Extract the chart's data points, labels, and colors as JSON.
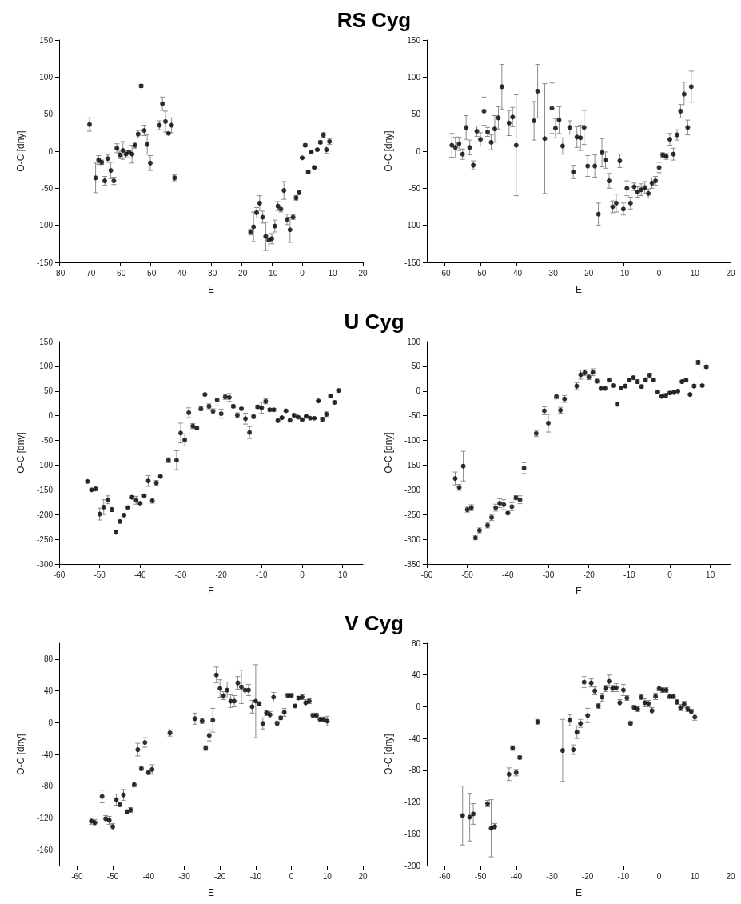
{
  "chart_data": [
    {
      "type": "scatter",
      "title": "RS Cyg",
      "xlabel": "E",
      "ylabel": "O-C [dny]",
      "xlim": [
        -80,
        20
      ],
      "xticks": [
        -80,
        -70,
        -60,
        -50,
        -40,
        -30,
        -20,
        -10,
        0,
        10,
        20
      ],
      "ylim": [
        -150,
        150
      ],
      "yticks": [
        -150,
        -100,
        -50,
        0,
        50,
        100,
        150
      ],
      "marker": "circle",
      "x": [
        -70,
        -68,
        -67,
        -66,
        -65,
        -64,
        -63,
        -62,
        -61,
        -60,
        -59,
        -58,
        -57,
        -56,
        -55,
        -54,
        -53,
        -52,
        -51,
        -50,
        -47,
        -46,
        -45,
        -44,
        -43,
        -42,
        -17,
        -16,
        -15,
        -14,
        -13,
        -12,
        -11,
        -10,
        -9,
        -8,
        -7,
        -6,
        -5,
        -4,
        -3,
        -2,
        -1,
        0,
        1,
        2,
        3,
        4,
        5,
        6,
        7,
        8,
        9
      ],
      "series": [
        {
          "color": "#000000",
          "values": [
            36,
            -36,
            -12,
            -15,
            -40,
            -10,
            -26,
            -40,
            4,
            -5,
            1,
            -4,
            -1,
            -4,
            8,
            23,
            88,
            28,
            9,
            -16,
            35,
            64,
            40,
            24,
            35,
            -36,
            -109,
            -102,
            -83,
            -70,
            -89,
            -115,
            -120,
            -118,
            -101,
            -74,
            -78,
            -53,
            -92,
            -106,
            -89,
            -63,
            -56,
            -9,
            8,
            -28,
            -1,
            -22,
            2,
            12,
            22,
            2,
            13
          ],
          "errors": [
            9,
            20,
            6,
            3,
            6,
            5,
            11,
            5,
            6,
            5,
            12,
            5,
            8,
            12,
            4,
            5,
            2,
            7,
            13,
            10,
            6,
            9,
            14,
            1,
            10,
            4,
            4,
            20,
            7,
            10,
            8,
            19,
            8,
            7,
            8,
            6,
            4,
            12,
            7,
            17,
            3,
            3,
            2,
            1,
            2,
            2,
            1,
            1,
            1,
            2,
            3,
            5,
            4
          ]
        }
      ]
    },
    {
      "type": "scatter",
      "xlabel": "E",
      "ylabel": "O-C [dny]",
      "xlim": [
        -65,
        20
      ],
      "xticks": [
        -60,
        -50,
        -40,
        -30,
        -20,
        -10,
        0,
        10,
        20
      ],
      "ylim": [
        -150,
        150
      ],
      "yticks": [
        -150,
        -100,
        -50,
        0,
        50,
        100,
        150
      ],
      "marker": "circle",
      "x": [
        -58,
        -57,
        -56,
        -55,
        -54,
        -53,
        -52,
        -51,
        -50,
        -49,
        -48,
        -47,
        -46,
        -45,
        -44,
        -42,
        -41,
        -40,
        -35,
        -34,
        -32,
        -30,
        -29,
        -28,
        -27,
        -25,
        -24,
        -23,
        -22,
        -21,
        -20,
        -18,
        -17,
        -16,
        -15,
        -14,
        -13,
        -12,
        -11,
        -10,
        -9,
        -8,
        -7,
        -6,
        -5,
        -4,
        -3,
        -2,
        -1,
        0,
        1,
        2,
        3,
        4,
        5,
        6,
        7,
        8,
        9
      ],
      "series": [
        {
          "color": "#000000",
          "values": [
            8,
            5,
            10,
            -4,
            32,
            5,
            -19,
            27,
            16,
            54,
            26,
            12,
            30,
            45,
            87,
            38,
            46,
            8,
            41,
            81,
            17,
            58,
            31,
            42,
            7,
            32,
            -28,
            19,
            18,
            32,
            -20,
            -20,
            -85,
            -2,
            -12,
            -40,
            -75,
            -70,
            -13,
            -78,
            -50,
            -70,
            -48,
            -55,
            -52,
            -49,
            -57,
            -43,
            -40,
            -22,
            -5,
            -7,
            16,
            -4,
            22,
            54,
            77,
            32,
            87
          ],
          "errors": [
            16,
            14,
            9,
            7,
            16,
            10,
            6,
            7,
            9,
            19,
            6,
            10,
            18,
            15,
            30,
            17,
            13,
            68,
            26,
            36,
            74,
            34,
            13,
            18,
            11,
            9,
            9,
            14,
            17,
            23,
            14,
            15,
            15,
            19,
            11,
            10,
            8,
            12,
            9,
            8,
            10,
            8,
            5,
            7,
            8,
            8,
            6,
            7,
            6,
            7,
            3,
            4,
            8,
            8,
            7,
            9,
            16,
            10,
            21
          ]
        }
      ]
    },
    {
      "type": "scatter",
      "title": "U Cyg",
      "xlabel": "E",
      "ylabel": "O-C [dny]",
      "xlim": [
        -60,
        15
      ],
      "xticks": [
        -60,
        -50,
        -40,
        -30,
        -20,
        -10,
        0,
        10
      ],
      "ylim": [
        -300,
        150
      ],
      "yticks": [
        -300,
        -250,
        -200,
        -150,
        -100,
        -50,
        0,
        50,
        100,
        150
      ],
      "marker": "circle",
      "x": [
        -53,
        -52,
        -51,
        -50,
        -49,
        -48,
        -47,
        -46,
        -45,
        -44,
        -43,
        -42,
        -41,
        -40,
        -39,
        -38,
        -37,
        -36,
        -35,
        -33,
        -31,
        -30,
        -29,
        -28,
        -27,
        -26,
        -25,
        -24,
        -23,
        -22,
        -21,
        -20,
        -19,
        -18,
        -17,
        -16,
        -15,
        -14,
        -13,
        -12,
        -11,
        -10,
        -9,
        -8,
        -7,
        -6,
        -5,
        -4,
        -3,
        -2,
        -1,
        0,
        1,
        2,
        3,
        4,
        5,
        6,
        7,
        8,
        9
      ],
      "series": [
        {
          "color": "#000000",
          "values": [
            -133,
            -150,
            -148,
            -199,
            -185,
            -170,
            -190,
            -236,
            -214,
            -201,
            -186,
            -165,
            -171,
            -177,
            -162,
            -132,
            -172,
            -136,
            -123,
            -90,
            -90,
            -35,
            -49,
            6,
            -21,
            -25,
            14,
            43,
            19,
            9,
            32,
            4,
            38,
            37,
            19,
            1,
            14,
            -6,
            -34,
            -2,
            18,
            16,
            29,
            12,
            12,
            -10,
            -4,
            10,
            -9,
            1,
            -3,
            -8,
            -1,
            -5,
            -5,
            30,
            -7,
            3,
            40,
            27,
            51
          ],
          "errors": [
            2,
            2,
            3,
            12,
            15,
            8,
            4,
            3,
            2,
            2,
            2,
            3,
            8,
            2,
            2,
            11,
            5,
            5,
            2,
            5,
            19,
            20,
            12,
            10,
            5,
            2,
            4,
            2,
            5,
            5,
            12,
            9,
            5,
            8,
            3,
            5,
            2,
            11,
            12,
            3,
            3,
            11,
            5,
            3,
            3,
            3,
            2,
            2,
            4,
            3,
            2,
            2,
            1,
            1,
            1,
            1,
            4,
            5,
            3,
            3,
            3
          ]
        }
      ]
    },
    {
      "type": "scatter",
      "xlabel": "E",
      "ylabel": "O-C [dny]",
      "xlim": [
        -60,
        15
      ],
      "xticks": [
        -60,
        -50,
        -40,
        -30,
        -20,
        -10,
        0,
        10
      ],
      "ylim": [
        -350,
        100
      ],
      "yticks": [
        -350,
        -300,
        -250,
        -200,
        -150,
        -100,
        -50,
        0,
        50,
        100
      ],
      "marker": "circle",
      "x": [
        -53,
        -52,
        -51,
        -50,
        -49,
        -48,
        -47,
        -45,
        -44,
        -43,
        -42,
        -41,
        -40,
        -39,
        -38,
        -37,
        -36,
        -33,
        -31,
        -30,
        -28,
        -27,
        -26,
        -23,
        -22,
        -21,
        -20,
        -19,
        -18,
        -17,
        -16,
        -15,
        -14,
        -13,
        -12,
        -11,
        -10,
        -9,
        -8,
        -7,
        -6,
        -5,
        -4,
        -3,
        -2,
        -1,
        0,
        1,
        2,
        3,
        4,
        5,
        6,
        7,
        8,
        9
      ],
      "series": [
        {
          "color": "#000000",
          "values": [
            -177,
            -195,
            -152,
            -240,
            -236,
            -297,
            -282,
            -272,
            -256,
            -236,
            -227,
            -230,
            -247,
            -234,
            -216,
            -220,
            -156,
            -86,
            -40,
            -65,
            -11,
            -39,
            -16,
            10,
            33,
            37,
            28,
            38,
            20,
            5,
            5,
            22,
            11,
            -27,
            6,
            10,
            22,
            27,
            19,
            9,
            23,
            32,
            22,
            -2,
            -11,
            -9,
            -4,
            -3,
            0,
            19,
            22,
            -7,
            10,
            58,
            11,
            49
          ],
          "errors": [
            13,
            6,
            30,
            5,
            6,
            4,
            5,
            5,
            6,
            7,
            9,
            10,
            2,
            8,
            4,
            8,
            11,
            6,
            8,
            18,
            5,
            6,
            7,
            7,
            9,
            6,
            5,
            7,
            4,
            3,
            3,
            4,
            3,
            3,
            4,
            3,
            3,
            3,
            4,
            3,
            3,
            4,
            3,
            3,
            2,
            4,
            3,
            3,
            2,
            3,
            2,
            2,
            3,
            4,
            2,
            3
          ]
        }
      ]
    },
    {
      "type": "scatter",
      "title": "V Cyg",
      "xlabel": "E",
      "ylabel": "O-C [dny]",
      "xlim": [
        -65,
        20
      ],
      "xticks": [
        -60,
        -50,
        -40,
        -30,
        -20,
        -10,
        0,
        10,
        20
      ],
      "ylim": [
        -180,
        100
      ],
      "yticks": [
        -160,
        -120,
        -80,
        -40,
        0,
        40,
        80
      ],
      "marker": "circle",
      "x": [
        -56,
        -55,
        -53,
        -52,
        -51,
        -50,
        -49,
        -48,
        -47,
        -46,
        -45,
        -44,
        -43,
        -42,
        -41,
        -40,
        -39,
        -34,
        -27,
        -25,
        -24,
        -23,
        -22,
        -21,
        -20,
        -19,
        -18,
        -17,
        -16,
        -15,
        -14,
        -13,
        -12,
        -11,
        -10,
        -9,
        -8,
        -7,
        -6,
        -5,
        -4,
        -3,
        -2,
        -1,
        0,
        1,
        2,
        3,
        4,
        5,
        6,
        7,
        8,
        9,
        10
      ],
      "series": [
        {
          "color": "#000000",
          "values": [
            -124,
            -126,
            -93,
            -121,
            -123,
            -131,
            -97,
            -103,
            -91,
            -112,
            -110,
            -78,
            -34,
            -58,
            -25,
            -63,
            -59,
            -13,
            5,
            2,
            -32,
            -16,
            3,
            60,
            43,
            34,
            41,
            27,
            27,
            50,
            45,
            41,
            41,
            20,
            27,
            24,
            -1,
            12,
            10,
            32,
            -1,
            6,
            13,
            34,
            34,
            21,
            31,
            32,
            25,
            27,
            9,
            9,
            4,
            4,
            2
          ],
          "errors": [
            4,
            4,
            8,
            4,
            5,
            4,
            7,
            3,
            7,
            2,
            3,
            3,
            8,
            2,
            6,
            2,
            6,
            4,
            7,
            3,
            3,
            7,
            15,
            10,
            11,
            5,
            10,
            8,
            7,
            8,
            21,
            10,
            7,
            8,
            46,
            2,
            7,
            3,
            4,
            6,
            3,
            2,
            5,
            3,
            3,
            1,
            2,
            3,
            4,
            3,
            3,
            3,
            3,
            3,
            6
          ]
        }
      ]
    },
    {
      "type": "scatter",
      "xlabel": "E",
      "ylabel": "O-C [dny]",
      "xlim": [
        -65,
        20
      ],
      "xticks": [
        -60,
        -50,
        -40,
        -30,
        -20,
        -10,
        0,
        10,
        20
      ],
      "ylim": [
        -200,
        80
      ],
      "yticks": [
        -200,
        -160,
        -120,
        -80,
        -40,
        0,
        40,
        80
      ],
      "marker": "circle",
      "x": [
        -55,
        -53,
        -52,
        -48,
        -47,
        -46,
        -42,
        -41,
        -40,
        -39,
        -34,
        -27,
        -25,
        -24,
        -23,
        -22,
        -21,
        -20,
        -19,
        -18,
        -17,
        -16,
        -15,
        -14,
        -13,
        -12,
        -11,
        -10,
        -9,
        -8,
        -7,
        -6,
        -5,
        -4,
        -3,
        -2,
        -1,
        0,
        1,
        2,
        3,
        4,
        5,
        6,
        7,
        8,
        9,
        10
      ],
      "series": [
        {
          "color": "#000000",
          "values": [
            -137,
            -139,
            -135,
            -122,
            -153,
            -151,
            -85,
            -52,
            -83,
            -64,
            -19,
            -55,
            -17,
            -54,
            -32,
            -21,
            31,
            -11,
            30,
            20,
            1,
            12,
            23,
            32,
            23,
            24,
            5,
            21,
            11,
            -21,
            -1,
            -3,
            12,
            5,
            4,
            -5,
            13,
            23,
            21,
            21,
            13,
            13,
            6,
            -1,
            3,
            -3,
            -6,
            -13
          ],
          "errors": [
            37,
            30,
            13,
            4,
            36,
            4,
            8,
            3,
            4,
            2,
            3,
            39,
            7,
            6,
            8,
            5,
            7,
            9,
            5,
            5,
            3,
            5,
            4,
            8,
            4,
            5,
            4,
            7,
            3,
            3,
            3,
            3,
            3,
            5,
            4,
            4,
            4,
            3,
            3,
            3,
            3,
            3,
            3,
            4,
            4,
            3,
            3,
            4
          ]
        }
      ]
    }
  ]
}
